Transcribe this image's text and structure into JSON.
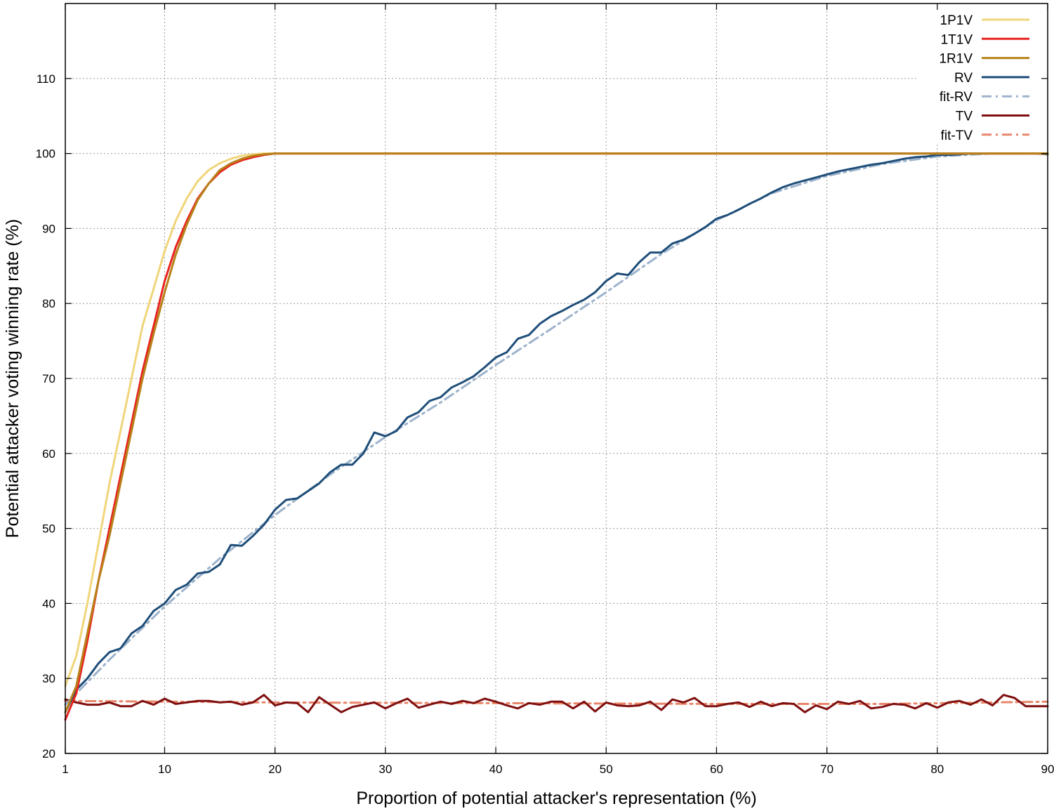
{
  "chart_data": {
    "type": "line",
    "title": "",
    "xlabel": "Proportion of potential attacker's representation (%)",
    "ylabel": "Potential attacker voting winning rate (%)",
    "xlim": [
      1,
      90
    ],
    "ylim": [
      20,
      120
    ],
    "x_ticks": [
      "1",
      "10",
      "20",
      "30",
      "40",
      "50",
      "60",
      "70",
      "80",
      "90"
    ],
    "x_tick_values": [
      1,
      10,
      20,
      30,
      40,
      50,
      60,
      70,
      80,
      90
    ],
    "y_ticks": [
      "20",
      "30",
      "40",
      "50",
      "60",
      "70",
      "80",
      "90",
      "100",
      "110"
    ],
    "y_tick_values": [
      20,
      30,
      40,
      50,
      60,
      70,
      80,
      90,
      100,
      110
    ],
    "grid": true,
    "legend_position": "top-right",
    "series": [
      {
        "name": "1P1V",
        "color": "#f0d57a",
        "dash": "solid",
        "points": [
          [
            1,
            29
          ],
          [
            2,
            33
          ],
          [
            3,
            40
          ],
          [
            4,
            48
          ],
          [
            5,
            56
          ],
          [
            6,
            63
          ],
          [
            7,
            70
          ],
          [
            8,
            77
          ],
          [
            9,
            82
          ],
          [
            10,
            87
          ],
          [
            11,
            91
          ],
          [
            12,
            94
          ],
          [
            13,
            96.3
          ],
          [
            14,
            97.8
          ],
          [
            15,
            98.7
          ],
          [
            16,
            99.3
          ],
          [
            17,
            99.7
          ],
          [
            18,
            99.9
          ],
          [
            19,
            100
          ],
          [
            20,
            100
          ],
          [
            90,
            100
          ]
        ]
      },
      {
        "name": "1T1V",
        "color": "#e8231f",
        "dash": "solid",
        "points": [
          [
            1,
            24.5
          ],
          [
            2,
            28
          ],
          [
            3,
            35
          ],
          [
            4,
            43
          ],
          [
            5,
            50
          ],
          [
            6,
            57
          ],
          [
            7,
            64
          ],
          [
            8,
            71
          ],
          [
            9,
            77
          ],
          [
            10,
            83
          ],
          [
            11,
            87.5
          ],
          [
            12,
            91
          ],
          [
            13,
            94
          ],
          [
            14,
            96
          ],
          [
            15,
            97.5
          ],
          [
            16,
            98.5
          ],
          [
            17,
            99.1
          ],
          [
            18,
            99.5
          ],
          [
            19,
            99.8
          ],
          [
            20,
            100
          ],
          [
            21,
            100
          ],
          [
            90,
            100
          ]
        ]
      },
      {
        "name": "1R1V",
        "color": "#b8821a",
        "dash": "solid",
        "points": [
          [
            1,
            25.5
          ],
          [
            2,
            29
          ],
          [
            3,
            36
          ],
          [
            4,
            43
          ],
          [
            5,
            49
          ],
          [
            6,
            56
          ],
          [
            7,
            63
          ],
          [
            8,
            70
          ],
          [
            9,
            76
          ],
          [
            10,
            81.5
          ],
          [
            11,
            86.5
          ],
          [
            12,
            90.5
          ],
          [
            13,
            93.8
          ],
          [
            14,
            96
          ],
          [
            15,
            97.8
          ],
          [
            16,
            98.7
          ],
          [
            17,
            99.3
          ],
          [
            18,
            99.7
          ],
          [
            19,
            99.9
          ],
          [
            20,
            100
          ],
          [
            90,
            100
          ]
        ]
      },
      {
        "name": "RV",
        "color": "#1f4e79",
        "dash": "solid",
        "points": [
          [
            1,
            25.5
          ],
          [
            2,
            28.5
          ],
          [
            3,
            30
          ],
          [
            4,
            32
          ],
          [
            5,
            33.5
          ],
          [
            6,
            34
          ],
          [
            7,
            36
          ],
          [
            8,
            37
          ],
          [
            9,
            39
          ],
          [
            10,
            40
          ],
          [
            11,
            41.8
          ],
          [
            12,
            42.5
          ],
          [
            13,
            44
          ],
          [
            14,
            44.2
          ],
          [
            15,
            45.2
          ],
          [
            16,
            47.8
          ],
          [
            17,
            47.7
          ],
          [
            18,
            49
          ],
          [
            19,
            50.5
          ],
          [
            20,
            52.5
          ],
          [
            21,
            53.8
          ],
          [
            22,
            54
          ],
          [
            23,
            55
          ],
          [
            24,
            56
          ],
          [
            25,
            57.5
          ],
          [
            26,
            58.5
          ],
          [
            27,
            58.5
          ],
          [
            28,
            60
          ],
          [
            29,
            62.8
          ],
          [
            30,
            62.3
          ],
          [
            31,
            63
          ],
          [
            32,
            64.8
          ],
          [
            33,
            65.5
          ],
          [
            34,
            67
          ],
          [
            35,
            67.5
          ],
          [
            36,
            68.8
          ],
          [
            37,
            69.5
          ],
          [
            38,
            70.3
          ],
          [
            39,
            71.5
          ],
          [
            40,
            72.8
          ],
          [
            41,
            73.5
          ],
          [
            42,
            75.3
          ],
          [
            43,
            75.8
          ],
          [
            44,
            77.3
          ],
          [
            45,
            78.3
          ],
          [
            46,
            79
          ],
          [
            47,
            79.8
          ],
          [
            48,
            80.5
          ],
          [
            49,
            81.5
          ],
          [
            50,
            83
          ],
          [
            51,
            84
          ],
          [
            52,
            83.8
          ],
          [
            53,
            85.5
          ],
          [
            54,
            86.8
          ],
          [
            55,
            86.8
          ],
          [
            56,
            88
          ],
          [
            57,
            88.5
          ],
          [
            58,
            89.3
          ],
          [
            59,
            90.2
          ],
          [
            60,
            91.3
          ],
          [
            61,
            91.8
          ],
          [
            62,
            92.5
          ],
          [
            63,
            93.3
          ],
          [
            64,
            94
          ],
          [
            65,
            94.8
          ],
          [
            66,
            95.5
          ],
          [
            67,
            96
          ],
          [
            68,
            96.4
          ],
          [
            69,
            96.8
          ],
          [
            70,
            97.2
          ],
          [
            71,
            97.6
          ],
          [
            72,
            97.9
          ],
          [
            73,
            98.2
          ],
          [
            74,
            98.5
          ],
          [
            75,
            98.7
          ],
          [
            76,
            99
          ],
          [
            77,
            99.3
          ],
          [
            78,
            99.5
          ],
          [
            79,
            99.6
          ],
          [
            80,
            99.8
          ],
          [
            81,
            99.8
          ],
          [
            82,
            99.9
          ],
          [
            83,
            100
          ],
          [
            84,
            100
          ],
          [
            85,
            100
          ],
          [
            86,
            100
          ],
          [
            87,
            100
          ],
          [
            88,
            100
          ],
          [
            89,
            100
          ],
          [
            90,
            99.9
          ]
        ]
      },
      {
        "name": "fit-RV",
        "color": "#9db3cc",
        "dash": "dashdot",
        "points": [
          [
            1,
            26.5
          ],
          [
            5,
            32.5
          ],
          [
            10,
            39.6
          ],
          [
            15,
            46
          ],
          [
            20,
            51.8
          ],
          [
            25,
            57.2
          ],
          [
            30,
            62.2
          ],
          [
            35,
            66.8
          ],
          [
            40,
            71.8
          ],
          [
            45,
            76.6
          ],
          [
            50,
            81.5
          ],
          [
            55,
            86.6
          ],
          [
            60,
            91.1
          ],
          [
            65,
            94.7
          ],
          [
            70,
            97
          ],
          [
            75,
            98.6
          ],
          [
            80,
            99.6
          ],
          [
            85,
            100
          ],
          [
            90,
            100
          ]
        ]
      },
      {
        "name": "TV",
        "color": "#7f0f0f",
        "dash": "solid",
        "points": [
          [
            1,
            27.2
          ],
          [
            2,
            26.8
          ],
          [
            3,
            26.5
          ],
          [
            4,
            26.5
          ],
          [
            5,
            26.8
          ],
          [
            6,
            26.3
          ],
          [
            7,
            26.3
          ],
          [
            8,
            27
          ],
          [
            9,
            26.5
          ],
          [
            10,
            27.3
          ],
          [
            11,
            26.6
          ],
          [
            12,
            26.8
          ],
          [
            13,
            27
          ],
          [
            14,
            27
          ],
          [
            15,
            26.8
          ],
          [
            16,
            26.9
          ],
          [
            17,
            26.5
          ],
          [
            18,
            26.8
          ],
          [
            19,
            27.8
          ],
          [
            20,
            26.4
          ],
          [
            21,
            26.8
          ],
          [
            22,
            26.7
          ],
          [
            23,
            25.5
          ],
          [
            24,
            27.5
          ],
          [
            25,
            26.5
          ],
          [
            26,
            25.5
          ],
          [
            27,
            26.2
          ],
          [
            28,
            26.5
          ],
          [
            29,
            26.8
          ],
          [
            30,
            26
          ],
          [
            31,
            26.7
          ],
          [
            32,
            27.3
          ],
          [
            33,
            26.1
          ],
          [
            34,
            26.5
          ],
          [
            35,
            26.9
          ],
          [
            36,
            26.6
          ],
          [
            37,
            27
          ],
          [
            38,
            26.7
          ],
          [
            39,
            27.3
          ],
          [
            40,
            26.9
          ],
          [
            41,
            26.4
          ],
          [
            42,
            26
          ],
          [
            43,
            26.7
          ],
          [
            44,
            26.5
          ],
          [
            45,
            26.9
          ],
          [
            46,
            26.9
          ],
          [
            47,
            26
          ],
          [
            48,
            26.9
          ],
          [
            49,
            25.6
          ],
          [
            50,
            26.8
          ],
          [
            51,
            26.4
          ],
          [
            52,
            26.3
          ],
          [
            53,
            26.4
          ],
          [
            54,
            26.9
          ],
          [
            55,
            25.8
          ],
          [
            56,
            27.2
          ],
          [
            57,
            26.8
          ],
          [
            58,
            27.4
          ],
          [
            59,
            26.3
          ],
          [
            60,
            26.3
          ],
          [
            61,
            26.6
          ],
          [
            62,
            26.8
          ],
          [
            63,
            26.2
          ],
          [
            64,
            26.9
          ],
          [
            65,
            26.3
          ],
          [
            66,
            26.7
          ],
          [
            67,
            26.6
          ],
          [
            68,
            25.5
          ],
          [
            69,
            26.4
          ],
          [
            70,
            25.9
          ],
          [
            71,
            26.9
          ],
          [
            72,
            26.6
          ],
          [
            73,
            27
          ],
          [
            74,
            26
          ],
          [
            75,
            26.2
          ],
          [
            76,
            26.6
          ],
          [
            77,
            26.5
          ],
          [
            78,
            26
          ],
          [
            79,
            26.7
          ],
          [
            80,
            26.1
          ],
          [
            81,
            26.8
          ],
          [
            82,
            27
          ],
          [
            83,
            26.5
          ],
          [
            84,
            27.2
          ],
          [
            85,
            26.4
          ],
          [
            86,
            27.8
          ],
          [
            87,
            27.4
          ],
          [
            88,
            26.3
          ],
          [
            89,
            26.3
          ],
          [
            90,
            26.3
          ]
        ]
      },
      {
        "name": "fit-TV",
        "color": "#e8866a",
        "dash": "dashdot",
        "points": [
          [
            1,
            27
          ],
          [
            20,
            26.8
          ],
          [
            40,
            26.7
          ],
          [
            60,
            26.6
          ],
          [
            75,
            26.6
          ],
          [
            90,
            26.9
          ]
        ]
      }
    ]
  }
}
